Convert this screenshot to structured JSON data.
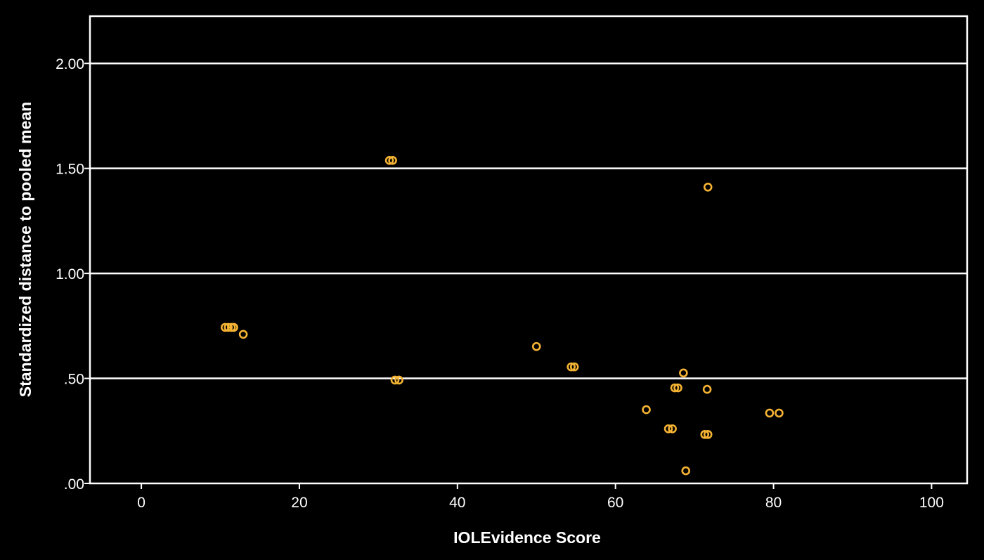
{
  "chart_data": {
    "type": "scatter",
    "title": "",
    "xlabel": "IOLEvidence Score",
    "ylabel": "Standardized distance to pooled mean",
    "xlim": [
      -6.5,
      104.5
    ],
    "ylim": [
      0,
      2.225
    ],
    "x_ticks": [
      0,
      20,
      40,
      60,
      80,
      100
    ],
    "x_tick_labels": [
      "0",
      "20",
      "40",
      "60",
      "80",
      "100"
    ],
    "y_ticks": [
      0,
      0.5,
      1.0,
      1.5,
      2.0
    ],
    "y_tick_labels": [
      ".00",
      ".50",
      "1.00",
      "1.50",
      "2.00"
    ],
    "grid": "horizontal",
    "legend": "none",
    "colors": {
      "background": "#000000",
      "axes": "#ffffff",
      "gridline": "#ffffff",
      "marker": "#f5b333"
    },
    "points": [
      {
        "x": 10.6,
        "y": 0.743
      },
      {
        "x": 11.0,
        "y": 0.743
      },
      {
        "x": 11.4,
        "y": 0.743
      },
      {
        "x": 11.7,
        "y": 0.743
      },
      {
        "x": 12.9,
        "y": 0.71
      },
      {
        "x": 31.4,
        "y": 1.538
      },
      {
        "x": 31.8,
        "y": 1.538
      },
      {
        "x": 32.1,
        "y": 0.492
      },
      {
        "x": 32.6,
        "y": 0.492
      },
      {
        "x": 50.0,
        "y": 0.652
      },
      {
        "x": 54.4,
        "y": 0.555
      },
      {
        "x": 54.8,
        "y": 0.555
      },
      {
        "x": 63.9,
        "y": 0.351
      },
      {
        "x": 66.7,
        "y": 0.26
      },
      {
        "x": 67.2,
        "y": 0.26
      },
      {
        "x": 67.5,
        "y": 0.455
      },
      {
        "x": 67.9,
        "y": 0.455
      },
      {
        "x": 68.6,
        "y": 0.526
      },
      {
        "x": 68.9,
        "y": 0.06
      },
      {
        "x": 71.3,
        "y": 0.233
      },
      {
        "x": 71.7,
        "y": 0.233
      },
      {
        "x": 71.6,
        "y": 0.448
      },
      {
        "x": 71.7,
        "y": 1.411
      },
      {
        "x": 79.5,
        "y": 0.335
      },
      {
        "x": 80.7,
        "y": 0.335
      }
    ]
  }
}
